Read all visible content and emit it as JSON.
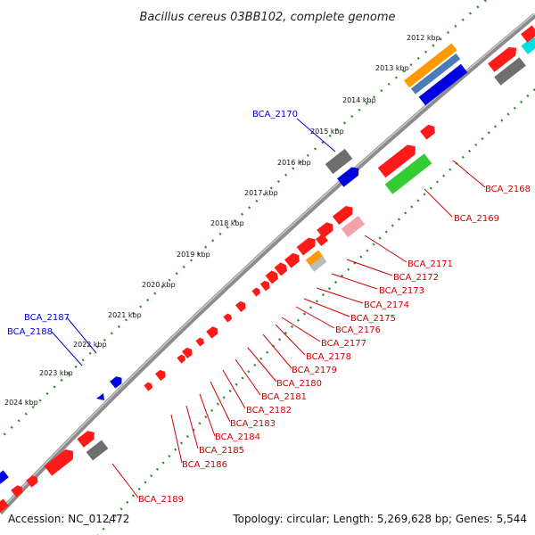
{
  "title": "Bacillus cereus 03BB102, complete genome",
  "footer": {
    "accession": "Accession: NC_012472",
    "summary": "Topology: circular; Length: 5,269,628 bp; Genes: 5,544"
  },
  "ticks": [
    "2012 kbp",
    "2013 kbp",
    "2014 kbp",
    "2015 kbp",
    "2016 kbp",
    "2017 kbp",
    "2018 kbp",
    "2019 kbp",
    "2020 kbp",
    "2021 kbp",
    "2022 kbp",
    "2023 kbp",
    "2024 kbp"
  ],
  "blue_labels": [
    "BCA_2170",
    "BCA_2187",
    "BCA_2188"
  ],
  "red_labels": [
    "BCA_2168",
    "BCA_2169",
    "BCA_2171",
    "BCA_2172",
    "BCA_2173",
    "BCA_2174",
    "BCA_2175",
    "BCA_2176",
    "BCA_2177",
    "BCA_2178",
    "BCA_2179",
    "BCA_2180",
    "BCA_2181",
    "BCA_2182",
    "BCA_2183",
    "BCA_2184",
    "BCA_2185",
    "BCA_2186",
    "BCA_2189"
  ],
  "colors": {
    "backbone": "#8c8c8c",
    "tick_green": "#2e8b2e",
    "red": "#ff1a1a",
    "blue": "#0000e0",
    "gray": "#6e6e6e",
    "green": "#33cc33",
    "orange": "#ff9900",
    "pink": "#f4a0a8",
    "cyan": "#00e0e0",
    "label_red": "#cc0000",
    "label_blue": "#0000cc"
  }
}
